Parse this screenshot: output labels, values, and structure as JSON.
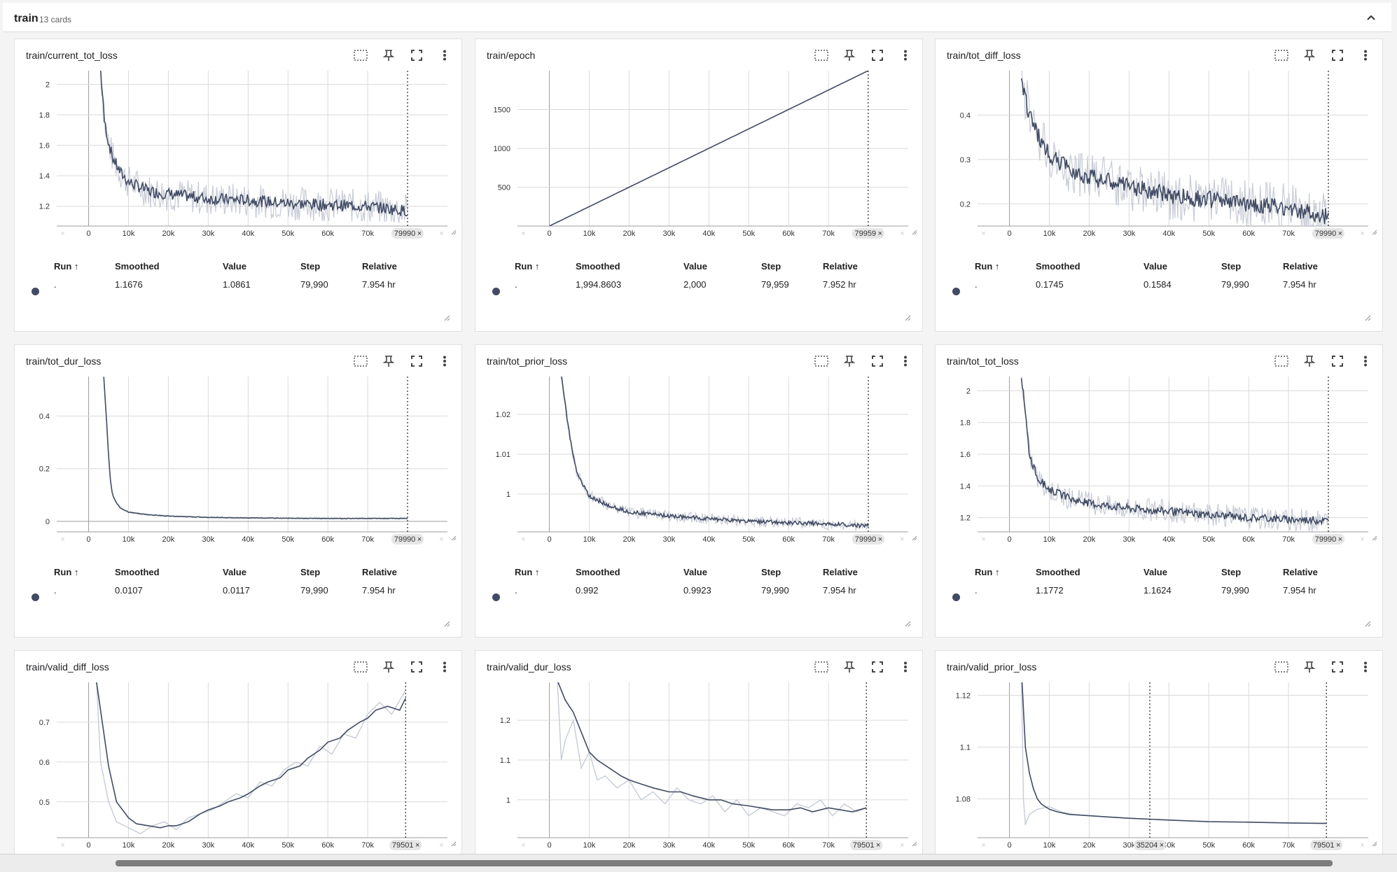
{
  "group": {
    "name": "train",
    "count": "13 cards"
  },
  "icons": [
    "zoom-select-icon",
    "pin-icon",
    "fullscreen-icon",
    "more-vert-icon",
    "chevron-up-icon",
    "resize-handle-icon"
  ],
  "colors": {
    "smoothed_line": "#414b63",
    "raw_line": "#c6cbd6",
    "grid": "#dadada"
  },
  "table_headers": {
    "run": "Run ↑",
    "smoothed": "Smoothed",
    "value": "Value",
    "step": "Step",
    "relative": "Relative"
  },
  "cards": [
    {
      "title": "train/current_tot_loss",
      "cursor_label": "79990",
      "table": {
        "run": ".",
        "smoothed": "1.1676",
        "value": "1.0861",
        "step": "79,990",
        "relative": "7.954 hr"
      }
    },
    {
      "title": "train/epoch",
      "cursor_label": "79959",
      "table": {
        "run": ".",
        "smoothed": "1,994.8603",
        "value": "2,000",
        "step": "79,959",
        "relative": "7.952 hr"
      }
    },
    {
      "title": "train/tot_diff_loss",
      "cursor_label": "79990",
      "table": {
        "run": ".",
        "smoothed": "0.1745",
        "value": "0.1584",
        "step": "79,990",
        "relative": "7.954 hr"
      }
    },
    {
      "title": "train/tot_dur_loss",
      "cursor_label": "79990",
      "table": {
        "run": ".",
        "smoothed": "0.0107",
        "value": "0.0117",
        "step": "79,990",
        "relative": "7.954 hr"
      }
    },
    {
      "title": "train/tot_prior_loss",
      "cursor_label": "79990",
      "table": {
        "run": ".",
        "smoothed": "0.992",
        "value": "0.9923",
        "step": "79,990",
        "relative": "7.954 hr"
      }
    },
    {
      "title": "train/tot_tot_loss",
      "cursor_label": "79990",
      "table": {
        "run": ".",
        "smoothed": "1.1772",
        "value": "1.1624",
        "step": "79,990",
        "relative": "7.954 hr"
      }
    },
    {
      "title": "train/valid_diff_loss",
      "cursor_label": "79501"
    },
    {
      "title": "train/valid_dur_loss",
      "cursor_label": "79501"
    },
    {
      "title": "train/valid_prior_loss",
      "cursor_label": "79501",
      "extra_cursor_label": "35204"
    }
  ],
  "chart_data": [
    {
      "type": "line",
      "title": "train/current_tot_loss",
      "x_ticks": [
        "0",
        "10k",
        "20k",
        "30k",
        "40k",
        "50k",
        "60k",
        "70k"
      ],
      "y_ticks": [
        "1.2",
        "1.4",
        "1.6",
        "1.8",
        "2"
      ],
      "xlim": [
        -8000,
        90000
      ],
      "ylim": [
        1.07,
        2.09
      ],
      "cursor_x": 79990,
      "series": [
        {
          "values_x": [
            3000,
            4000,
            5000,
            6000,
            8000,
            10000,
            15000,
            20000,
            30000,
            40000,
            50000,
            60000,
            70000,
            79990
          ],
          "smoothed": [
            2.1,
            1.75,
            1.62,
            1.52,
            1.42,
            1.36,
            1.3,
            1.28,
            1.25,
            1.24,
            1.22,
            1.21,
            1.2,
            1.17
          ],
          "noise": 0.07
        }
      ]
    },
    {
      "type": "line",
      "title": "train/epoch",
      "x_ticks": [
        "0",
        "10k",
        "20k",
        "30k",
        "40k",
        "50k",
        "60k",
        "70k"
      ],
      "y_ticks": [
        "500",
        "1000",
        "1500"
      ],
      "xlim": [
        -8000,
        90000
      ],
      "ylim": [
        0,
        2000
      ],
      "cursor_x": 79959,
      "series": [
        {
          "values_x": [
            0,
            79959
          ],
          "smoothed": [
            0,
            2000
          ],
          "noise": 0
        }
      ]
    },
    {
      "type": "line",
      "title": "train/tot_diff_loss",
      "x_ticks": [
        "0",
        "10k",
        "20k",
        "30k",
        "40k",
        "50k",
        "60k",
        "70k"
      ],
      "y_ticks": [
        "0.2",
        "0.3",
        "0.4"
      ],
      "xlim": [
        -8000,
        90000
      ],
      "ylim": [
        0.15,
        0.5
      ],
      "cursor_x": 79990,
      "series": [
        {
          "values_x": [
            3000,
            5000,
            8000,
            10000,
            15000,
            20000,
            30000,
            40000,
            50000,
            60000,
            70000,
            79990
          ],
          "smoothed": [
            0.48,
            0.4,
            0.34,
            0.31,
            0.28,
            0.26,
            0.24,
            0.22,
            0.21,
            0.2,
            0.19,
            0.17
          ],
          "noise": 0.035
        }
      ]
    },
    {
      "type": "line",
      "title": "train/tot_dur_loss",
      "x_ticks": [
        "0",
        "10k",
        "20k",
        "30k",
        "40k",
        "50k",
        "60k",
        "70k"
      ],
      "y_ticks": [
        "0",
        "0.2",
        "0.4"
      ],
      "xlim": [
        -8000,
        90000
      ],
      "ylim": [
        -0.04,
        0.55
      ],
      "cursor_x": 79990,
      "series": [
        {
          "values_x": [
            3800,
            4500,
            5000,
            5500,
            6000,
            7000,
            8000,
            10000,
            15000,
            20000,
            30000,
            40000,
            50000,
            60000,
            70000,
            79990
          ],
          "smoothed": [
            0.55,
            0.38,
            0.25,
            0.15,
            0.1,
            0.07,
            0.05,
            0.035,
            0.025,
            0.02,
            0.015,
            0.013,
            0.012,
            0.011,
            0.011,
            0.011
          ],
          "noise": 0.002
        }
      ]
    },
    {
      "type": "line",
      "title": "train/tot_prior_loss",
      "x_ticks": [
        "0",
        "10k",
        "20k",
        "30k",
        "40k",
        "50k",
        "60k",
        "70k"
      ],
      "y_ticks": [
        "1",
        "1.01",
        "1.02"
      ],
      "xlim": [
        -8000,
        90000
      ],
      "ylim": [
        0.9905,
        1.0295
      ],
      "cursor_x": 79990,
      "series": [
        {
          "values_x": [
            3000,
            5000,
            7000,
            10000,
            15000,
            20000,
            30000,
            40000,
            50000,
            60000,
            70000,
            79990
          ],
          "smoothed": [
            1.0295,
            1.015,
            1.005,
            0.9995,
            0.997,
            0.9955,
            0.9945,
            0.9938,
            0.9932,
            0.9928,
            0.9925,
            0.992
          ],
          "noise": 0.0009
        }
      ]
    },
    {
      "type": "line",
      "title": "train/tot_tot_loss",
      "x_ticks": [
        "0",
        "10k",
        "20k",
        "30k",
        "40k",
        "50k",
        "60k",
        "70k"
      ],
      "y_ticks": [
        "1.2",
        "1.4",
        "1.6",
        "1.8",
        "2"
      ],
      "xlim": [
        -8000,
        90000
      ],
      "ylim": [
        1.11,
        2.09
      ],
      "cursor_x": 79990,
      "series": [
        {
          "values_x": [
            3000,
            5000,
            7000,
            10000,
            15000,
            20000,
            30000,
            40000,
            50000,
            60000,
            70000,
            79990
          ],
          "smoothed": [
            2.1,
            1.6,
            1.45,
            1.38,
            1.32,
            1.29,
            1.26,
            1.24,
            1.22,
            1.2,
            1.19,
            1.18
          ],
          "noise": 0.045
        }
      ]
    },
    {
      "type": "line",
      "title": "train/valid_diff_loss",
      "x_ticks": [
        "0",
        "10k",
        "20k",
        "30k",
        "40k",
        "50k",
        "60k",
        "70k"
      ],
      "y_ticks": [
        "0.5",
        "0.6",
        "0.7"
      ],
      "xlim": [
        -8000,
        90000
      ],
      "ylim": [
        0.41,
        0.8
      ],
      "cursor_x": 79501,
      "series": [
        {
          "name": "",
          "x": [
            2000,
            5000,
            7000,
            10000,
            12000,
            15000,
            18000,
            20000,
            22000,
            25000,
            28000,
            30000,
            33000,
            35000,
            38000,
            40000,
            43000,
            45000,
            48000,
            50000,
            53000,
            55000,
            58000,
            60000,
            63000,
            65000,
            68000,
            70000,
            72000,
            75000,
            78000,
            79501
          ],
          "y": [
            0.8,
            0.59,
            0.5,
            0.46,
            0.445,
            0.44,
            0.435,
            0.44,
            0.44,
            0.45,
            0.47,
            0.48,
            0.49,
            0.5,
            0.51,
            0.52,
            0.54,
            0.55,
            0.56,
            0.58,
            0.59,
            0.61,
            0.63,
            0.65,
            0.66,
            0.68,
            0.7,
            0.71,
            0.73,
            0.74,
            0.73,
            0.76
          ],
          "smoothed": true
        },
        {
          "name": "",
          "x": [
            2000,
            3000,
            5000,
            7000,
            9000,
            11000,
            13000,
            16000,
            19000,
            22000,
            25000,
            28000,
            31000,
            34000,
            37000,
            40000,
            43000,
            46000,
            49000,
            52000,
            55000,
            58000,
            61000,
            64000,
            67000,
            70000,
            73000,
            76000,
            79501
          ],
          "y": [
            0.8,
            0.6,
            0.5,
            0.45,
            0.44,
            0.43,
            0.42,
            0.44,
            0.45,
            0.43,
            0.46,
            0.47,
            0.48,
            0.5,
            0.52,
            0.51,
            0.55,
            0.54,
            0.58,
            0.6,
            0.59,
            0.64,
            0.62,
            0.67,
            0.66,
            0.72,
            0.75,
            0.72,
            0.78
          ],
          "smoothed": false
        }
      ]
    },
    {
      "type": "line",
      "title": "train/valid_dur_loss",
      "x_ticks": [
        "0",
        "10k",
        "20k",
        "30k",
        "40k",
        "50k",
        "60k",
        "70k"
      ],
      "y_ticks": [
        "1",
        "1.1",
        "1.2"
      ],
      "xlim": [
        -8000,
        90000
      ],
      "ylim": [
        0.905,
        1.295
      ],
      "cursor_x": 79501,
      "series": [
        {
          "name": "",
          "x": [
            2000,
            4000,
            6000,
            8000,
            10000,
            12000,
            15000,
            18000,
            20000,
            23000,
            26000,
            30000,
            33000,
            36000,
            40000,
            43000,
            46000,
            50000,
            53000,
            56000,
            60000,
            63000,
            66000,
            70000,
            73000,
            76000,
            79501
          ],
          "y": [
            1.3,
            1.25,
            1.22,
            1.17,
            1.12,
            1.1,
            1.08,
            1.06,
            1.05,
            1.04,
            1.03,
            1.02,
            1.02,
            1.01,
            1.0,
            1.0,
            0.99,
            0.985,
            0.98,
            0.975,
            0.975,
            0.98,
            0.97,
            0.98,
            0.975,
            0.97,
            0.98
          ],
          "smoothed": true
        },
        {
          "name": "",
          "x": [
            2000,
            3000,
            4000,
            6000,
            8000,
            10000,
            12000,
            14000,
            17000,
            20000,
            23000,
            26000,
            29000,
            32000,
            35000,
            38000,
            41000,
            44000,
            47000,
            50000,
            53000,
            56000,
            59000,
            62000,
            65000,
            68000,
            71000,
            74000,
            77000,
            79501
          ],
          "y": [
            1.3,
            1.1,
            1.15,
            1.2,
            1.08,
            1.12,
            1.05,
            1.06,
            1.03,
            1.05,
            1.0,
            1.02,
            0.99,
            1.03,
            1.0,
            0.99,
            1.01,
            0.97,
            1.0,
            0.96,
            0.98,
            0.97,
            0.96,
            0.99,
            0.98,
            1.0,
            0.96,
            0.99,
            0.97,
            0.98
          ],
          "smoothed": false
        }
      ]
    },
    {
      "type": "line",
      "title": "train/valid_prior_loss",
      "x_ticks": [
        "0",
        "10k",
        "20k",
        "30k",
        "40k",
        "50k",
        "60k",
        "70k"
      ],
      "y_ticks": [
        "1.08",
        "1.1",
        "1.12"
      ],
      "xlim": [
        -8000,
        90000
      ],
      "ylim": [
        1.065,
        1.125
      ],
      "cursor_x": 79501,
      "extra_cursor_x": 35204,
      "series": [
        {
          "name": "",
          "x": [
            3000,
            4000,
            5000,
            6000,
            7000,
            8000,
            10000,
            12000,
            15000,
            20000,
            25000,
            30000,
            40000,
            50000,
            60000,
            70000,
            79501
          ],
          "y": [
            1.13,
            1.1,
            1.09,
            1.084,
            1.08,
            1.078,
            1.076,
            1.075,
            1.074,
            1.0735,
            1.073,
            1.0725,
            1.0718,
            1.0712,
            1.071,
            1.0707,
            1.0705
          ],
          "smoothed": true
        },
        {
          "name": "",
          "x": [
            3000,
            3500,
            4000,
            5000,
            7000,
            10000,
            13000,
            16000,
            20000,
            25000,
            30000,
            40000,
            50000,
            60000,
            70000,
            79501
          ],
          "y": [
            1.13,
            1.08,
            1.07,
            1.074,
            1.076,
            1.077,
            1.075,
            1.074,
            1.0735,
            1.073,
            1.0725,
            1.0718,
            1.0712,
            1.071,
            1.0707,
            1.0705
          ],
          "smoothed": false
        }
      ]
    }
  ]
}
